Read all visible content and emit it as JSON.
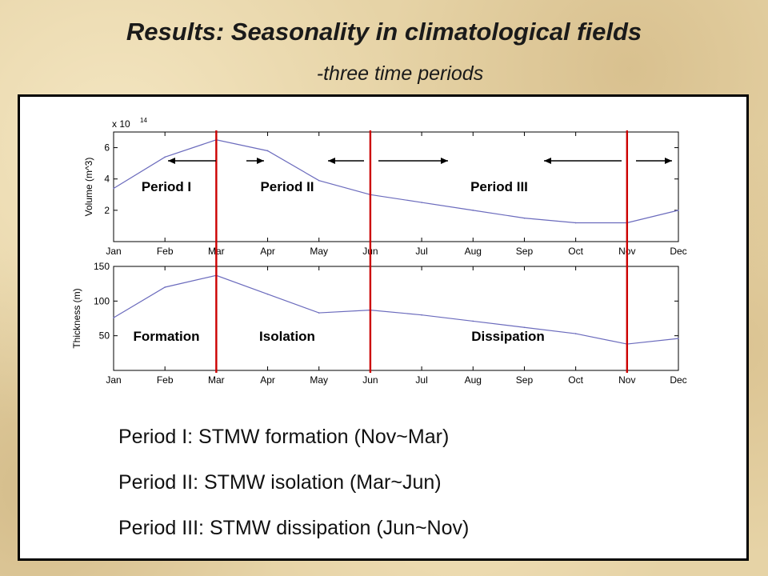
{
  "slide": {
    "title": "Results: Seasonality in climatological fields",
    "subtitle": "-three time periods",
    "descriptions": [
      "Period I: STMW formation (Nov~Mar)",
      "Period II: STMW isolation (Mar~Jun)",
      "Period III: STMW dissipation (Jun~Nov)"
    ],
    "colors": {
      "series": "#6b6bbd",
      "boundary": "#cc0000",
      "panel_bg": "#ffffff",
      "slide_bg": "#e6d3a6"
    }
  },
  "chart_data": [
    {
      "type": "line",
      "categories": [
        "Jan",
        "Feb",
        "Mar",
        "Apr",
        "May",
        "Jun",
        "Jul",
        "Aug",
        "Sep",
        "Oct",
        "Nov",
        "Dec"
      ],
      "series": [
        {
          "values": [
            3.4,
            5.4,
            6.5,
            5.8,
            3.9,
            3.0,
            2.5,
            2.0,
            1.5,
            1.2,
            1.2,
            2.0
          ]
        }
      ],
      "ylabel": "Volume (m^3)",
      "exponent_base": "x 10",
      "exponent_power": "14",
      "yticks": [
        2,
        4,
        6
      ],
      "ylim": [
        0,
        7
      ],
      "period_labels": [
        "Period I",
        "Period II",
        "Period III"
      ],
      "boundaries": [
        "Mar",
        "Jun",
        "Nov"
      ],
      "grid": false
    },
    {
      "type": "line",
      "categories": [
        "Jan",
        "Feb",
        "Mar",
        "Apr",
        "May",
        "Jun",
        "Jul",
        "Aug",
        "Sep",
        "Oct",
        "Nov",
        "Dec"
      ],
      "series": [
        {
          "values": [
            76,
            120,
            137,
            110,
            83,
            87,
            80,
            71,
            62,
            53,
            38,
            46
          ]
        }
      ],
      "ylabel": "Thickness (m)",
      "yticks": [
        50,
        100,
        150
      ],
      "ylim": [
        0,
        150
      ],
      "period_labels": [
        "Formation",
        "Isolation",
        "Dissipation"
      ],
      "boundaries": [
        "Mar",
        "Jun",
        "Nov"
      ],
      "grid": false
    }
  ]
}
